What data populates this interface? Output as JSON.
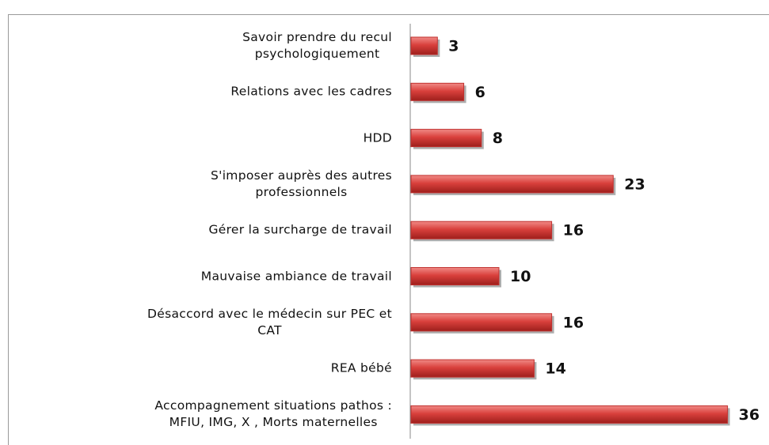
{
  "chart_data": {
    "type": "bar",
    "orientation": "horizontal",
    "categories": [
      "Savoir prendre du recul\npsychologiquement",
      "Relations avec les cadres",
      "HDD",
      "S'imposer auprès des autres\nprofessionnels",
      "Gérer la surcharge de travail",
      "Mauvaise ambiance de travail",
      "Désaccord avec le médecin sur PEC et\nCAT",
      "REA bébé",
      "Accompagnement situations pathos :\nMFIU, IMG, X , Morts maternelles"
    ],
    "values": [
      3,
      6,
      8,
      23,
      16,
      10,
      16,
      14,
      36
    ],
    "color": "#c0302e"
  }
}
